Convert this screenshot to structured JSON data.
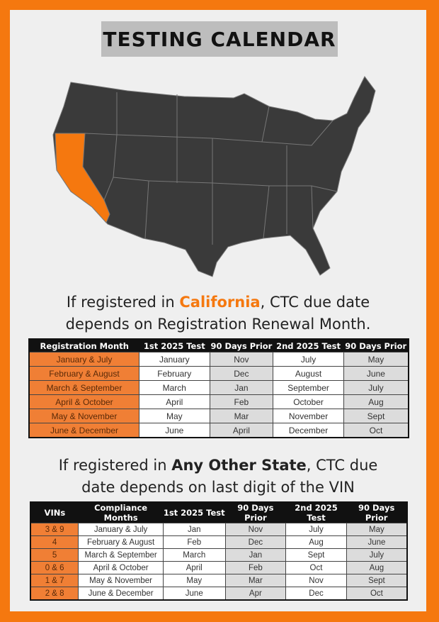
{
  "title": "TESTING CALENDAR",
  "colors": {
    "accent": "#f5780f",
    "map_states": "#3a3a3a",
    "highlight_state": "#f5780f"
  },
  "map": {
    "highlighted_state": "California"
  },
  "section1": {
    "caption_pre": "If registered in ",
    "caption_highlight": "California",
    "caption_post": ", CTC due date",
    "caption_line2": "depends on Registration Renewal Month.",
    "headers": [
      "Registration Month",
      "1st 2025 Test",
      "90 Days Prior",
      "2nd 2025 Test",
      "90 Days Prior"
    ],
    "rows": [
      [
        "January & July",
        "January",
        "Nov",
        "July",
        "May"
      ],
      [
        "February & August",
        "February",
        "Dec",
        "August",
        "June"
      ],
      [
        "March & September",
        "March",
        "Jan",
        "September",
        "July"
      ],
      [
        "April & October",
        "April",
        "Feb",
        "October",
        "Aug"
      ],
      [
        "May & November",
        "May",
        "Mar",
        "November",
        "Sept"
      ],
      [
        "June & December",
        "June",
        "April",
        "December",
        "Oct"
      ]
    ]
  },
  "section2": {
    "caption_pre": "If registered in ",
    "caption_bold": "Any Other State",
    "caption_post": ", CTC due",
    "caption_line2": "date depends on last digit of the VIN",
    "headers": [
      "VINs",
      "Compliance Months",
      "1st 2025 Test",
      "90 Days Prior",
      "2nd 2025 Test",
      "90 Days Prior"
    ],
    "rows": [
      [
        "3 & 9",
        "January & July",
        "Jan",
        "Nov",
        "July",
        "May"
      ],
      [
        "4",
        "February & August",
        "Feb",
        "Dec",
        "Aug",
        "June"
      ],
      [
        "5",
        "March & September",
        "March",
        "Jan",
        "Sept",
        "July"
      ],
      [
        "0 & 6",
        "April & October",
        "April",
        "Feb",
        "Oct",
        "Aug"
      ],
      [
        "1 & 7",
        "May & November",
        "May",
        "Mar",
        "Nov",
        "Sept"
      ],
      [
        "2 & 8",
        "June & December",
        "June",
        "Apr",
        "Dec",
        "Oct"
      ]
    ]
  }
}
